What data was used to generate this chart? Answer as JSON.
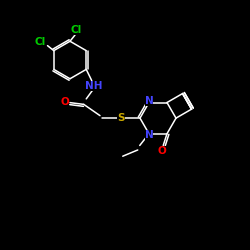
{
  "background": "#000000",
  "bond_color": "#ffffff",
  "atom_colors": {
    "Cl": "#00cc00",
    "N": "#4444ff",
    "O": "#ff0000",
    "S": "#ccaa00",
    "C": "#ffffff"
  },
  "font_size_atom": 7.5,
  "fig_size": [
    2.5,
    2.5
  ],
  "dpi": 100
}
